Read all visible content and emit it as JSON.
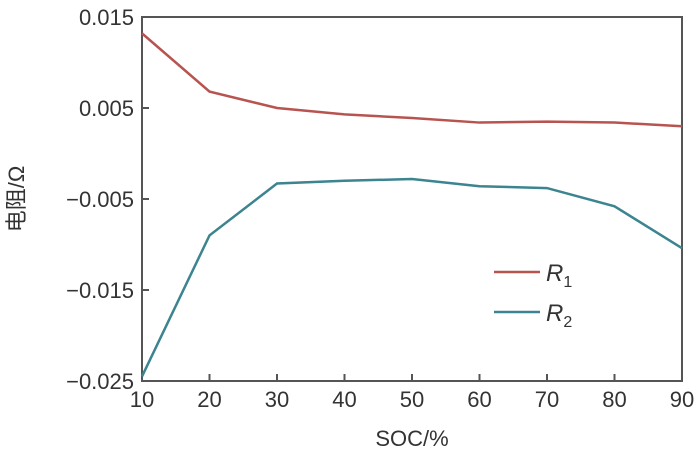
{
  "chart_data": {
    "type": "line",
    "title": "",
    "xlabel": "SOC/%",
    "ylabel": "电阻/Ω",
    "x": [
      10,
      20,
      30,
      40,
      50,
      60,
      70,
      80,
      90
    ],
    "xlim": [
      10,
      90
    ],
    "ylim": [
      -0.025,
      0.015
    ],
    "xticks": [
      "10",
      "20",
      "30",
      "40",
      "50",
      "60",
      "70",
      "80",
      "90"
    ],
    "yticks": [
      "0.015",
      "0.005",
      "−0.005",
      "−0.015",
      "−0.025"
    ],
    "ytick_values": [
      0.015,
      0.005,
      -0.005,
      -0.015,
      -0.025
    ],
    "grid": false,
    "legend_placement": "lower-right",
    "series": [
      {
        "name": "R1",
        "label_main": "R",
        "label_sub": "1",
        "color": "#b85450",
        "values": [
          0.0132,
          0.0068,
          0.005,
          0.0043,
          0.0039,
          0.0034,
          0.0035,
          0.0034,
          0.003
        ]
      },
      {
        "name": "R2",
        "label_main": "R",
        "label_sub": "2",
        "color": "#3b8490",
        "values": [
          -0.0245,
          -0.009,
          -0.0033,
          -0.003,
          -0.0028,
          -0.0036,
          -0.0038,
          -0.0058,
          -0.0104
        ]
      }
    ]
  }
}
